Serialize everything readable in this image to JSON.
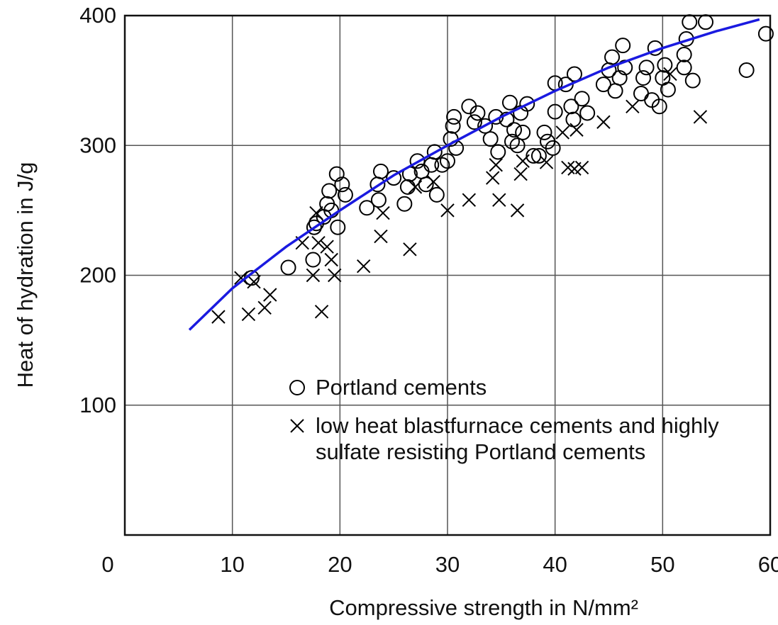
{
  "chart_data": {
    "type": "scatter",
    "xlabel": "Compressive strength in N/mm²",
    "ylabel": "Heat of hydration in J/g",
    "xlim": [
      0,
      60
    ],
    "ylim": [
      0,
      400
    ],
    "xticks": [
      0,
      10,
      20,
      30,
      40,
      50,
      60
    ],
    "yticks": [
      100,
      200,
      300,
      400
    ],
    "grid": true,
    "legend": "lower center",
    "series": [
      {
        "name": "Portland cements",
        "marker": "circle",
        "color": "#000000",
        "x": [
          15.2,
          11.8,
          17.5,
          17.6,
          17.8,
          18.5,
          18.8,
          19,
          19.2,
          19.7,
          19.8,
          20.2,
          20.5,
          22.5,
          23.5,
          23.8,
          23.6,
          25,
          26,
          26.3,
          26.5,
          27.2,
          27.6,
          28,
          28.5,
          28.8,
          29,
          29.5,
          30,
          30.3,
          30.5,
          30.6,
          30.8,
          32,
          32.5,
          32.8,
          33.5,
          34,
          34.5,
          34.7,
          35.5,
          35.8,
          36,
          36.2,
          36.5,
          36.8,
          37,
          37.4,
          38,
          38.5,
          39,
          39.3,
          39.8,
          40,
          40,
          41,
          41.5,
          41.7,
          41.8,
          42.5,
          43,
          44.5,
          45,
          45.3,
          45.6,
          46,
          46.3,
          46.5,
          48,
          48.2,
          48.5,
          49,
          49.3,
          49.7,
          50,
          50.2,
          50.5,
          52,
          52,
          52.2,
          52.5,
          52.8,
          54,
          57.8,
          59.6
        ],
        "values": [
          206,
          198,
          212,
          237,
          240,
          245,
          255,
          265,
          250,
          278,
          237,
          270,
          262,
          252,
          270,
          280,
          258,
          275,
          255,
          268,
          278,
          288,
          280,
          270,
          285,
          295,
          262,
          285,
          288,
          305,
          315,
          322,
          298,
          330,
          318,
          325,
          315,
          305,
          322,
          295,
          320,
          333,
          303,
          312,
          300,
          325,
          310,
          332,
          292,
          292,
          310,
          303,
          298,
          326,
          348,
          347,
          330,
          320,
          355,
          336,
          325,
          347,
          358,
          368,
          342,
          352,
          377,
          360,
          340,
          352,
          360,
          335,
          375,
          330,
          352,
          362,
          343,
          370,
          360,
          382,
          395,
          350,
          395,
          358,
          386
        ]
      },
      {
        "name": "low heat blastfurnace cements and highly sulfate resisting Portland cements",
        "marker": "x",
        "color": "#000000",
        "x": [
          8.7,
          10.8,
          11.5,
          12,
          13,
          13.5,
          16.5,
          17.5,
          17.8,
          18,
          18.3,
          18.8,
          19.2,
          19.5,
          22.2,
          23.8,
          24,
          26.5,
          27,
          28.7,
          30,
          32,
          34.2,
          34.5,
          34.8,
          36.5,
          36.8,
          37,
          39.2,
          40.7,
          41.2,
          41.8,
          42.5,
          42,
          44.5,
          47.2,
          50.7,
          53.5
        ],
        "values": [
          168,
          198,
          170,
          195,
          175,
          185,
          225,
          200,
          248,
          225,
          172,
          222,
          212,
          200,
          207,
          230,
          248,
          220,
          268,
          272,
          250,
          258,
          275,
          285,
          258,
          250,
          278,
          288,
          287,
          310,
          283,
          282,
          283,
          312,
          318,
          330,
          355,
          322
        ]
      }
    ],
    "fit": {
      "color": "#1a1ae0",
      "x": [
        6,
        10,
        15,
        20,
        25,
        30,
        35,
        40,
        45,
        50,
        55,
        59
      ],
      "values": [
        158,
        190,
        222,
        250,
        277,
        300,
        322,
        342,
        360,
        375,
        388,
        397
      ]
    }
  }
}
